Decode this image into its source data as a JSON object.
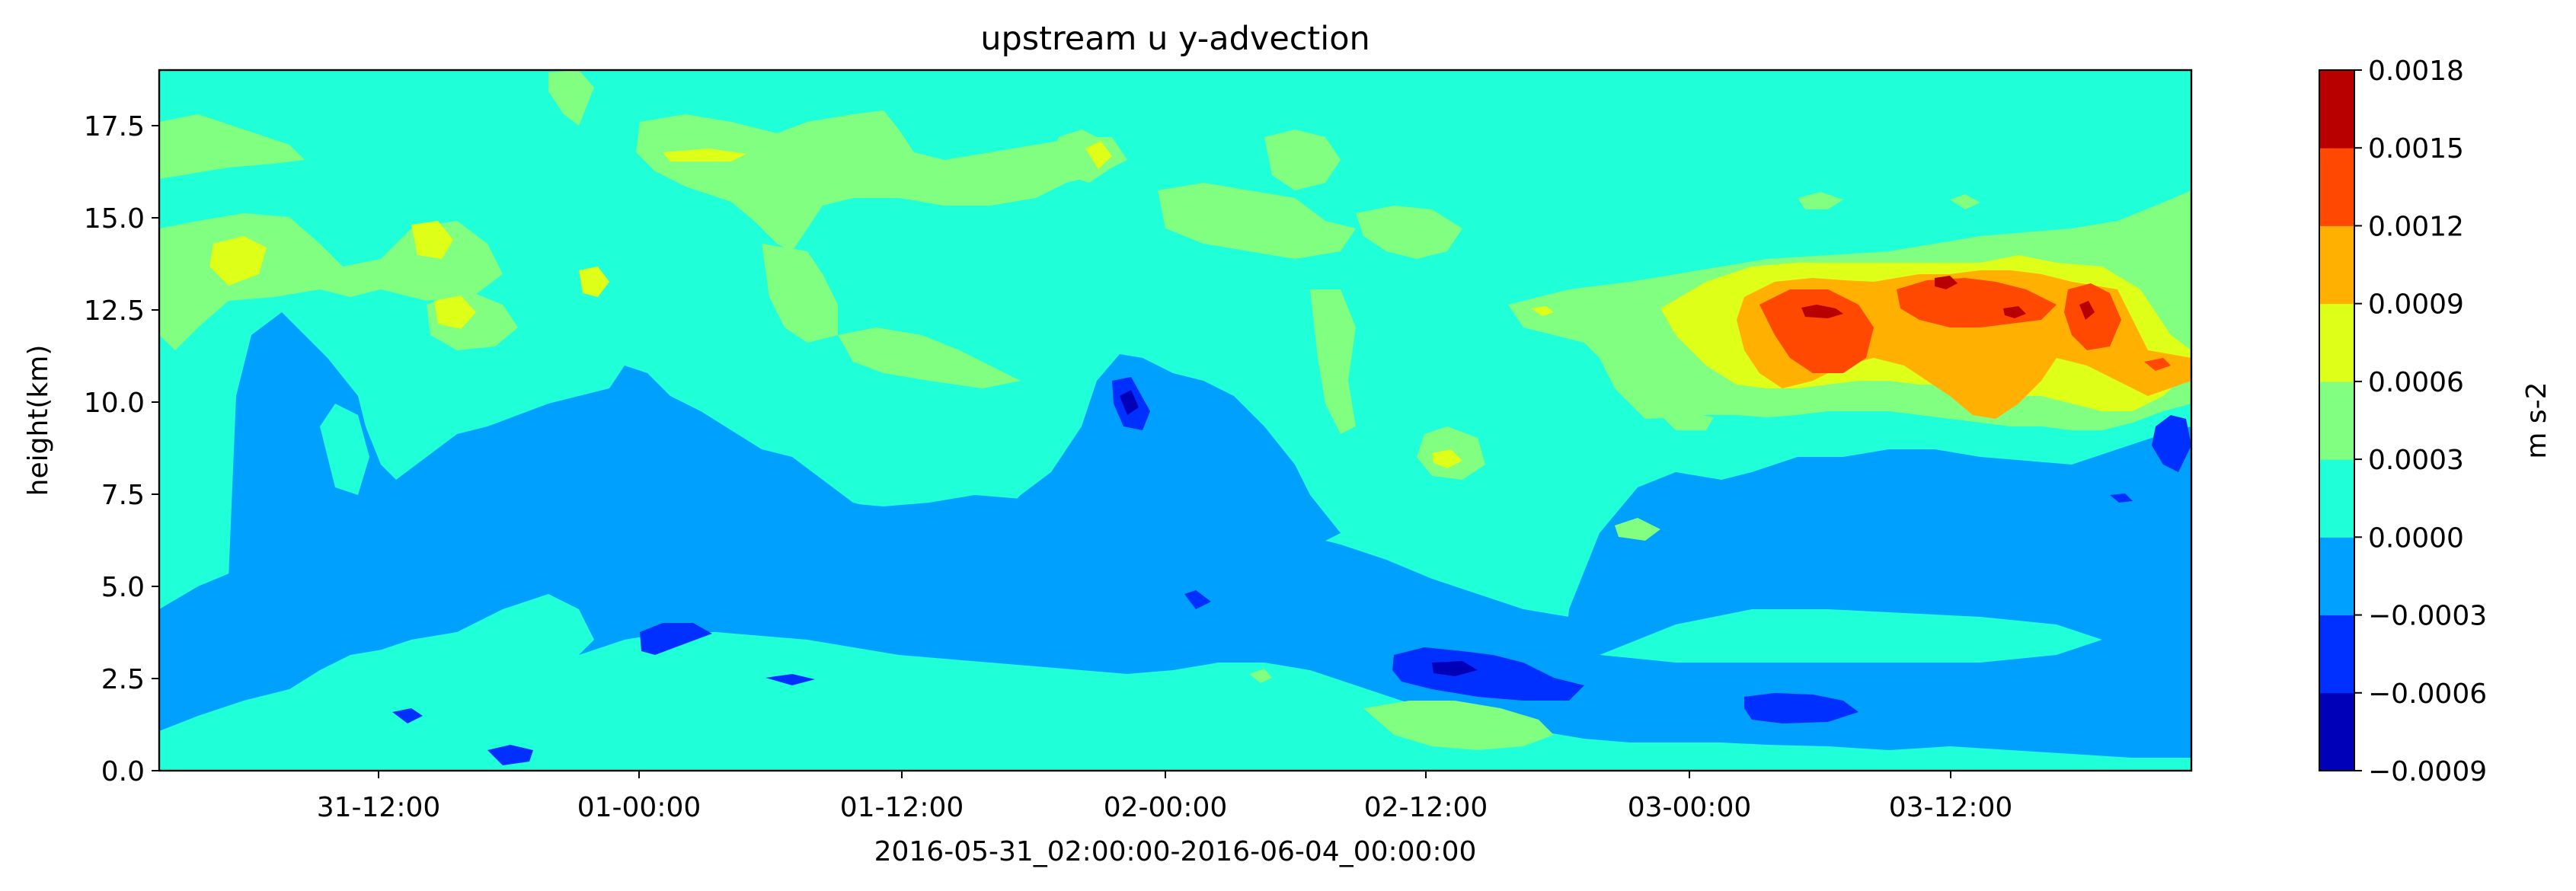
{
  "chart_data": {
    "type": "heatmap",
    "subtype": "filled-contour",
    "title": "upstream u y-advection",
    "xlabel": "2016-05-31_02:00:00-2016-06-04_00:00:00",
    "ylabel": "height(km)",
    "x_start": "2016-05-31 02:00",
    "x_end": "2016-06-04 00:00",
    "x_ticks": [
      "31-12:00",
      "01-00:00",
      "01-12:00",
      "02-00:00",
      "02-12:00",
      "03-00:00",
      "03-12:00"
    ],
    "ylim": [
      0,
      19
    ],
    "y_ticks": [
      "0.0",
      "2.5",
      "5.0",
      "7.5",
      "10.0",
      "12.5",
      "15.0",
      "17.5"
    ],
    "colormap": "jet",
    "colorbar": {
      "label": "m s-2",
      "levels": [
        "−0.0009",
        "−0.0006",
        "−0.0003",
        "0.0000",
        "0.0003",
        "0.0006",
        "0.0009",
        "0.0012",
        "0.0015",
        "0.0018"
      ],
      "colors": [
        "#0000b9",
        "#0030ff",
        "#00a0ff",
        "#1fffd8",
        "#80ff80",
        "#deff18",
        "#ffb000",
        "#ff4800",
        "#b90000"
      ]
    },
    "features": [
      {
        "level": "0.0000 to 0.0003",
        "desc": "background field above ~8 km and in a near-surface band"
      },
      {
        "level": "-0.0003 to 0.0000",
        "desc": "broad negative band from ~1 to ~11 km, sloping downward toward 02-12:00"
      },
      {
        "level": "-0.0006 to -0.0003",
        "desc": "small pockets near 3 km (01-00:00), 10 km (02-00:00), 2.5 km (02-12:00), 1.5 km (03-06:00)"
      },
      {
        "level": "0.0012 to 0.0018",
        "desc": "strong positive maxima at ~12.5 km after 03-06:00"
      }
    ]
  },
  "colors": {
    "background": "#ffffff",
    "axes_frame": "#000000"
  }
}
